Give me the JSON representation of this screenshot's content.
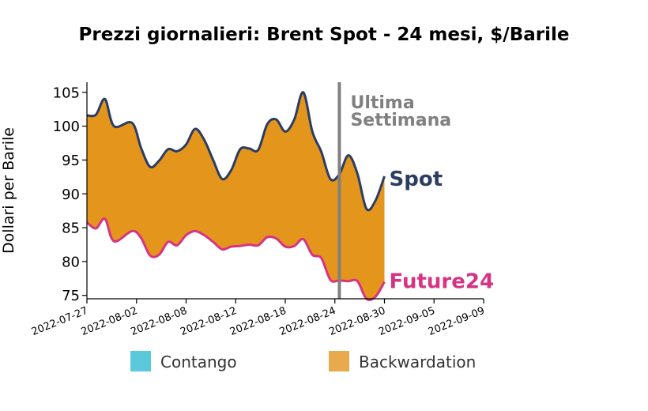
{
  "chart_data": {
    "type": "area",
    "title": "Prezzi giornalieri: Brent Spot - 24 mesi, $/Barile",
    "ylabel": "Dollari per Barile",
    "xlabel": "",
    "x_start": "2022-07-27",
    "x_end": "2022-09-09",
    "x_ticks": [
      "2022-07-27",
      "2022-08-02",
      "2022-08-08",
      "2022-08-12",
      "2022-08-18",
      "2022-08-24",
      "2022-08-30",
      "2022-09-05",
      "2022-09-09"
    ],
    "ylim": [
      74.5,
      106.5
    ],
    "y_ticks": [
      75,
      80,
      85,
      90,
      95,
      100,
      105
    ],
    "series": [
      {
        "name": "Spot",
        "color": "#2b3d63",
        "points": [
          [
            "2022-07-27",
            101.6
          ],
          [
            "2022-07-28",
            101.7
          ],
          [
            "2022-07-29",
            104.0
          ],
          [
            "2022-07-30",
            100.0
          ],
          [
            "2022-08-01",
            100.5
          ],
          [
            "2022-08-02",
            96.8
          ],
          [
            "2022-08-03",
            94.0
          ],
          [
            "2022-08-04",
            94.9
          ],
          [
            "2022-08-05",
            96.6
          ],
          [
            "2022-08-06",
            96.3
          ],
          [
            "2022-08-07",
            97.3
          ],
          [
            "2022-08-08",
            99.6
          ],
          [
            "2022-08-09",
            98.0
          ],
          [
            "2022-08-10",
            95.0
          ],
          [
            "2022-08-11",
            92.2
          ],
          [
            "2022-08-12",
            93.5
          ],
          [
            "2022-08-13",
            96.6
          ],
          [
            "2022-08-14",
            96.7
          ],
          [
            "2022-08-15",
            96.5
          ],
          [
            "2022-08-16",
            100.3
          ],
          [
            "2022-08-17",
            101.0
          ],
          [
            "2022-08-18",
            99.2
          ],
          [
            "2022-08-19",
            101.0
          ],
          [
            "2022-08-20",
            105.0
          ],
          [
            "2022-08-21",
            99.2
          ],
          [
            "2022-08-22",
            96.2
          ],
          [
            "2022-08-23",
            92.2
          ],
          [
            "2022-08-24",
            92.9
          ],
          [
            "2022-08-25",
            95.7
          ],
          [
            "2022-08-26",
            93.0
          ],
          [
            "2022-08-27",
            87.8
          ],
          [
            "2022-08-28",
            89.0
          ],
          [
            "2022-08-29",
            92.6
          ]
        ]
      },
      {
        "name": "Future24",
        "color": "#d63384",
        "points": [
          [
            "2022-07-27",
            85.8
          ],
          [
            "2022-07-28",
            84.9
          ],
          [
            "2022-07-29",
            86.3
          ],
          [
            "2022-07-30",
            83.0
          ],
          [
            "2022-08-01",
            84.5
          ],
          [
            "2022-08-02",
            83.5
          ],
          [
            "2022-08-03",
            80.9
          ],
          [
            "2022-08-04",
            81.0
          ],
          [
            "2022-08-05",
            82.9
          ],
          [
            "2022-08-06",
            82.4
          ],
          [
            "2022-08-07",
            83.9
          ],
          [
            "2022-08-08",
            84.5
          ],
          [
            "2022-08-09",
            83.9
          ],
          [
            "2022-08-10",
            82.9
          ],
          [
            "2022-08-11",
            81.8
          ],
          [
            "2022-08-12",
            82.2
          ],
          [
            "2022-08-13",
            82.3
          ],
          [
            "2022-08-14",
            82.5
          ],
          [
            "2022-08-15",
            82.4
          ],
          [
            "2022-08-16",
            83.6
          ],
          [
            "2022-08-17",
            83.4
          ],
          [
            "2022-08-18",
            82.2
          ],
          [
            "2022-08-19",
            82.3
          ],
          [
            "2022-08-20",
            83.3
          ],
          [
            "2022-08-21",
            81.0
          ],
          [
            "2022-08-22",
            80.5
          ],
          [
            "2022-08-23",
            77.3
          ],
          [
            "2022-08-24",
            77.2
          ],
          [
            "2022-08-25",
            77.1
          ],
          [
            "2022-08-26",
            77.1
          ],
          [
            "2022-08-27",
            74.5
          ],
          [
            "2022-08-28",
            74.8
          ],
          [
            "2022-08-29",
            77.0
          ]
        ]
      }
    ],
    "annotation": {
      "label_line1": "Ultima",
      "label_line2": "Settimana",
      "x": "2022-08-24",
      "color": "#808080"
    },
    "legend": {
      "placement": "bottom",
      "items": [
        {
          "label": "Contango",
          "color": "#5bc8dc"
        },
        {
          "label": "Backwardation",
          "color": "#e9a94d"
        }
      ]
    },
    "fill_color": "#e3951c",
    "title_color": "#1aa6c8",
    "grid": false
  }
}
